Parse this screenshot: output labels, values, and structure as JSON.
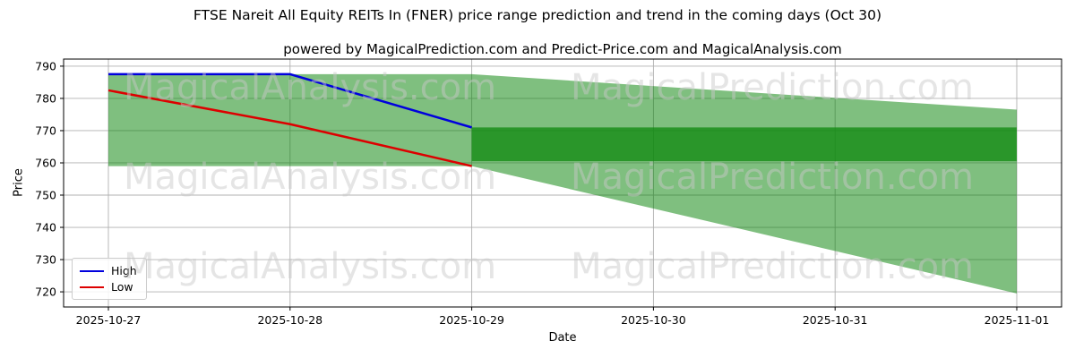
{
  "chart_data": {
    "type": "line",
    "title": "FTSE Nareit All Equity REITs In (FNER) price range prediction and trend in the coming days (Oct 30)",
    "subtitle": "powered by MagicalPrediction.com and Predict-Price.com and MagicalAnalysis.com",
    "xlabel": "Date",
    "ylabel": "Price",
    "x_ticks": [
      "2025-10-27",
      "2025-10-28",
      "2025-10-29",
      "2025-10-30",
      "2025-10-31",
      "2025-11-01"
    ],
    "y_ticks": [
      720,
      730,
      740,
      750,
      760,
      770,
      780,
      790
    ],
    "ylim": [
      715.3,
      792.2
    ],
    "grid": true,
    "legend_position": "lower left",
    "series": [
      {
        "name": "High",
        "color": "#0000dd",
        "x_index": [
          0,
          1,
          2
        ],
        "values": [
          787.5,
          787.5,
          771
        ]
      },
      {
        "name": "Low",
        "color": "#dd0000",
        "x_index": [
          0,
          1,
          2
        ],
        "values": [
          782.5,
          772,
          759
        ]
      }
    ],
    "bands": [
      {
        "name": "predicted-range-wide",
        "color": "rgba(0,128,0,0.5)",
        "x_index": [
          0,
          1,
          2,
          5
        ],
        "upper": [
          787.5,
          787.5,
          787.5,
          776.5
        ],
        "lower": [
          759,
          759,
          759,
          719.5
        ]
      },
      {
        "name": "predicted-range-core",
        "color": "rgba(18,138,18,0.78)",
        "x_index": [
          2,
          5
        ],
        "upper": [
          771,
          771
        ],
        "lower": [
          760.5,
          760.5
        ]
      }
    ],
    "colors": {
      "grid": "#b0b0b0",
      "axis": "#000000",
      "tick_label": "#000000"
    }
  },
  "watermarks": {
    "left_text": "MagicalAnalysis.com",
    "right_text": "MagicalPrediction.com"
  }
}
